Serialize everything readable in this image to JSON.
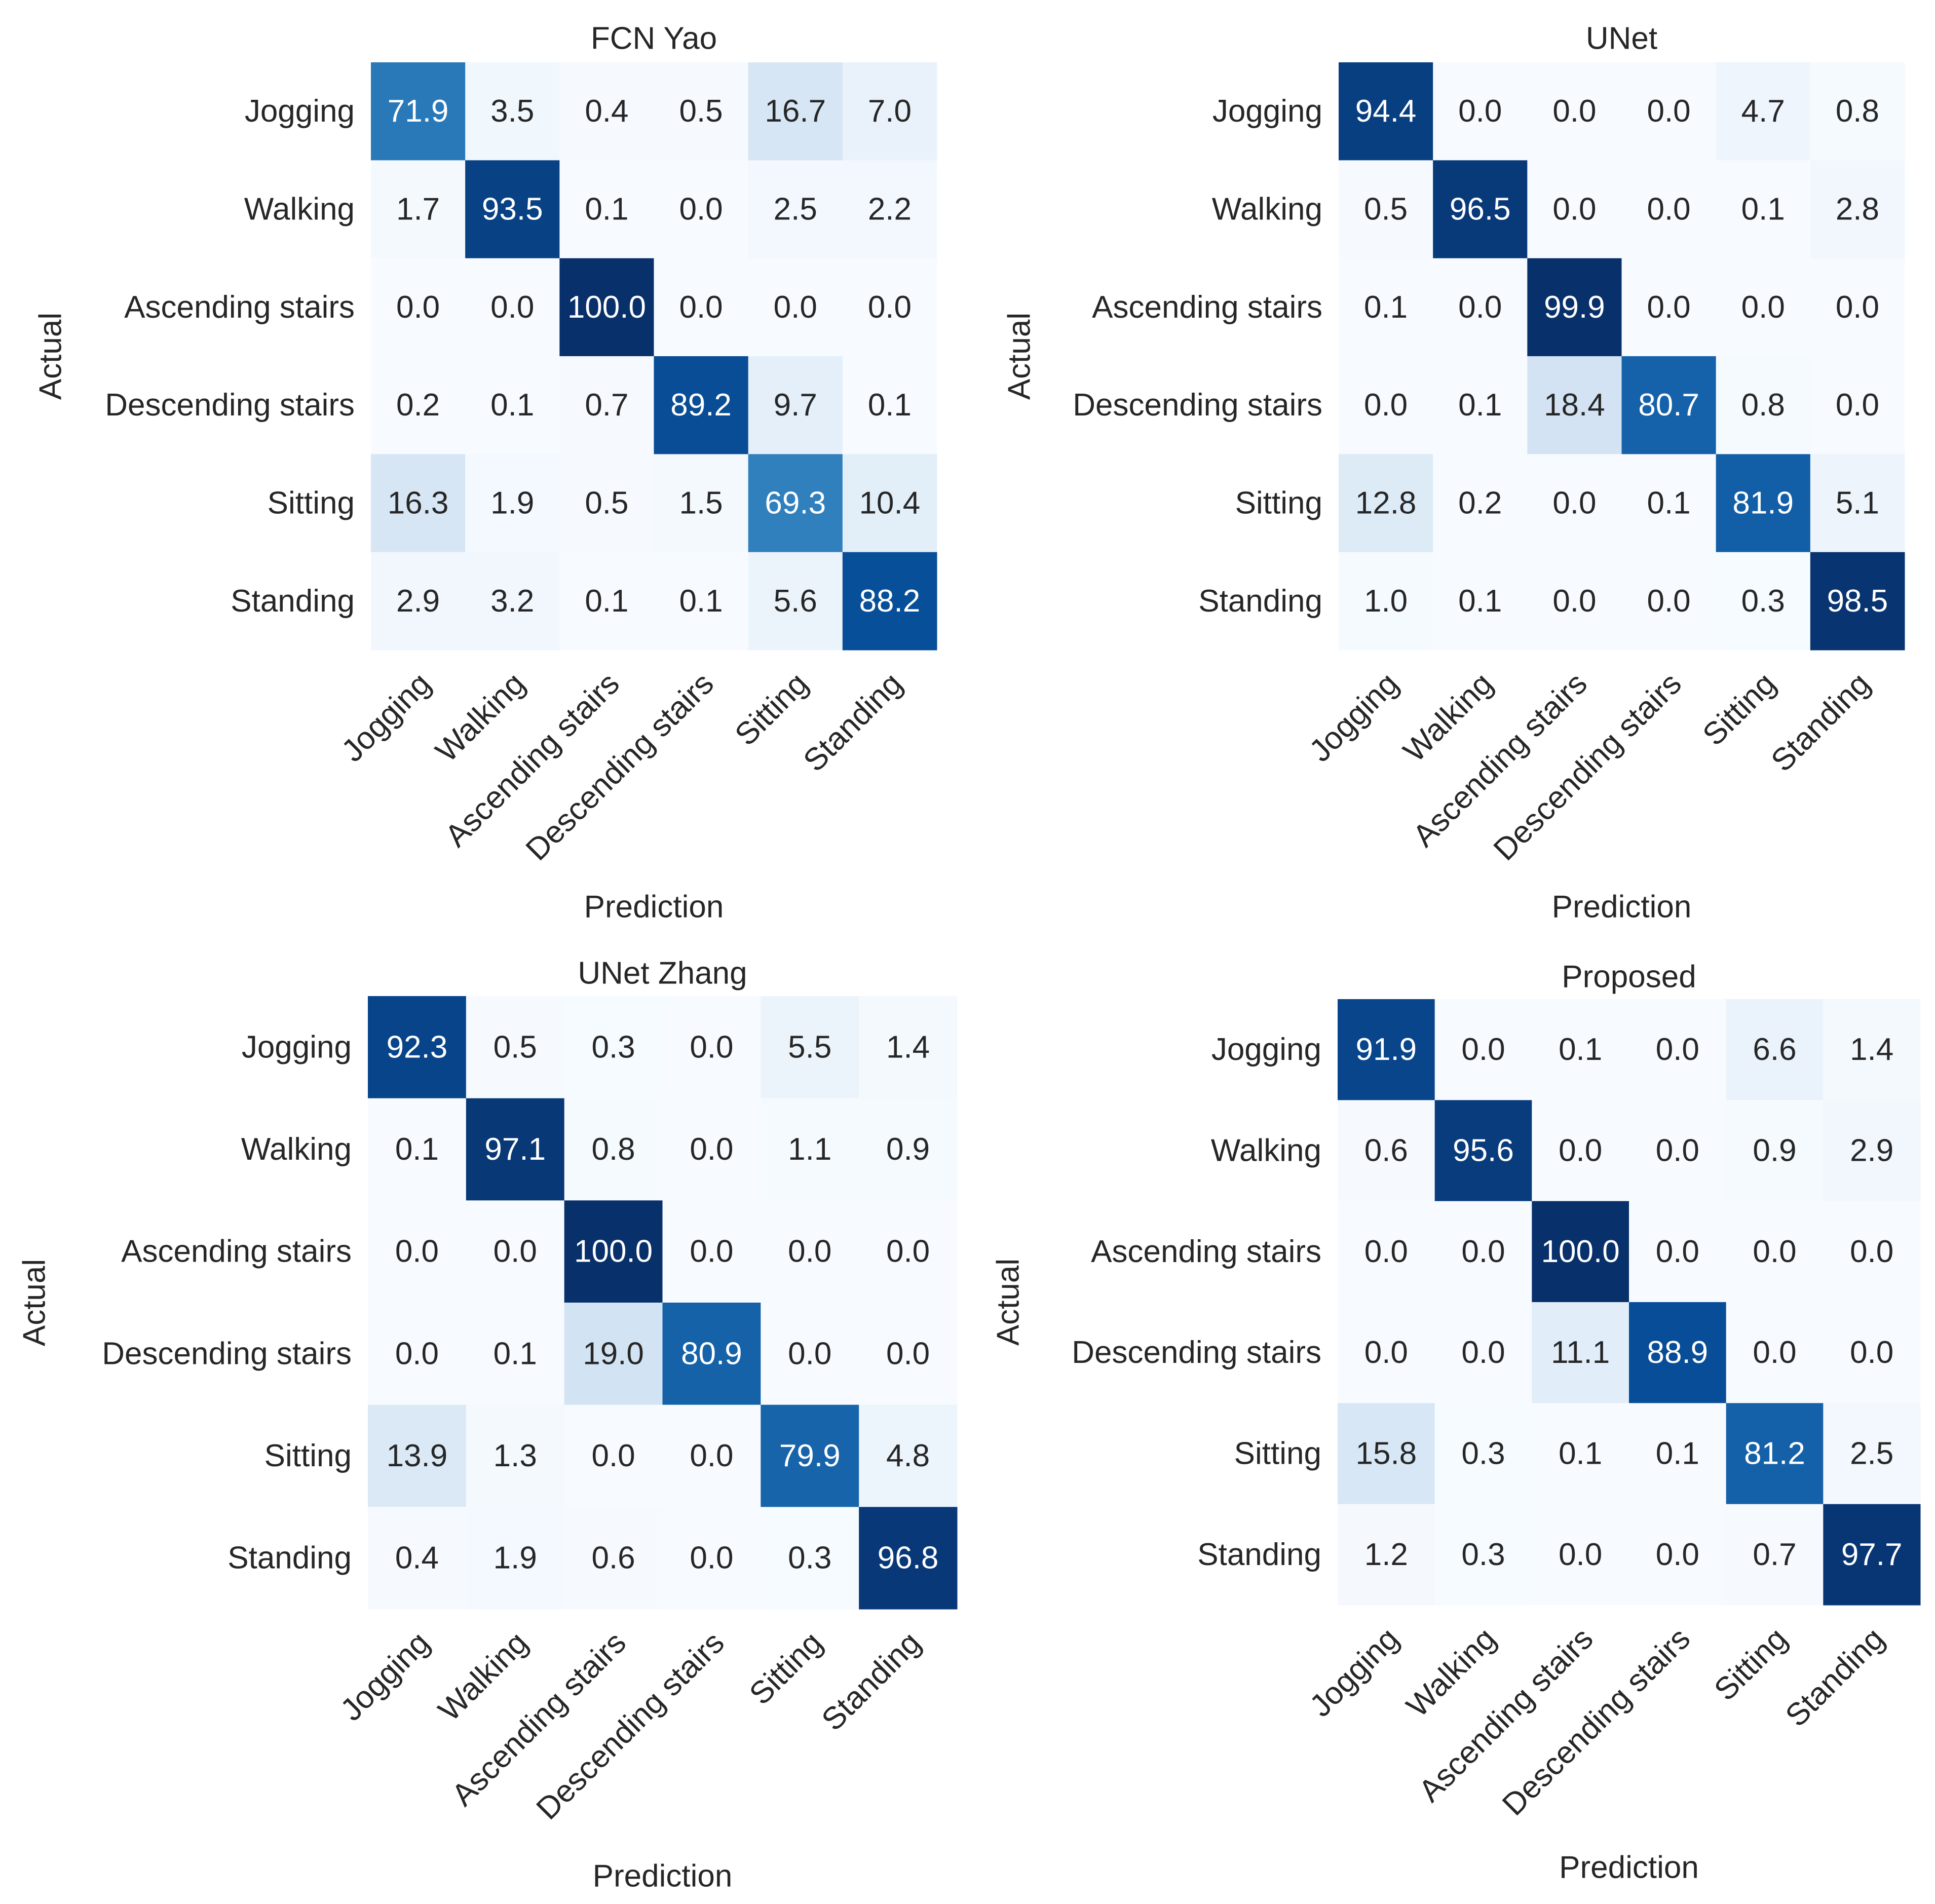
{
  "figure": {
    "panel_count": 4,
    "colormap": "Blues",
    "color_low": "#f7fbff",
    "color_high": "#08306b",
    "text_dark": "#262626",
    "text_light": "#ffffff"
  },
  "chart_data": [
    {
      "type": "heatmap",
      "title": "FCN Yao",
      "xlabel": "Prediction",
      "ylabel": "Actual",
      "x_categories": [
        "Jogging",
        "Walking",
        "Ascending stairs",
        "Descending stairs",
        "Sitting",
        "Standing"
      ],
      "y_categories": [
        "Jogging",
        "Walking",
        "Ascending stairs",
        "Descending stairs",
        "Sitting",
        "Standing"
      ],
      "value_range": [
        0,
        100
      ],
      "values": [
        [
          71.9,
          3.5,
          0.4,
          0.5,
          16.7,
          7.0
        ],
        [
          1.7,
          93.5,
          0.1,
          0.0,
          2.5,
          2.2
        ],
        [
          0.0,
          0.0,
          100.0,
          0.0,
          0.0,
          0.0
        ],
        [
          0.2,
          0.1,
          0.7,
          89.2,
          9.7,
          0.1
        ],
        [
          16.3,
          1.9,
          0.5,
          1.5,
          69.3,
          10.4
        ],
        [
          2.9,
          3.2,
          0.1,
          0.1,
          5.6,
          88.2
        ]
      ]
    },
    {
      "type": "heatmap",
      "title": "UNet",
      "xlabel": "Prediction",
      "ylabel": "Actual",
      "x_categories": [
        "Jogging",
        "Walking",
        "Ascending stairs",
        "Descending stairs",
        "Sitting",
        "Standing"
      ],
      "y_categories": [
        "Jogging",
        "Walking",
        "Ascending stairs",
        "Descending stairs",
        "Sitting",
        "Standing"
      ],
      "value_range": [
        0,
        100
      ],
      "values": [
        [
          94.4,
          0.0,
          0.0,
          0.0,
          4.7,
          0.8
        ],
        [
          0.5,
          96.5,
          0.0,
          0.0,
          0.1,
          2.8
        ],
        [
          0.1,
          0.0,
          99.9,
          0.0,
          0.0,
          0.0
        ],
        [
          0.0,
          0.1,
          18.4,
          80.7,
          0.8,
          0.0
        ],
        [
          12.8,
          0.2,
          0.0,
          0.1,
          81.9,
          5.1
        ],
        [
          1.0,
          0.1,
          0.0,
          0.0,
          0.3,
          98.5
        ]
      ]
    },
    {
      "type": "heatmap",
      "title": "UNet Zhang",
      "xlabel": "Prediction",
      "ylabel": "Actual",
      "x_categories": [
        "Jogging",
        "Walking",
        "Ascending stairs",
        "Descending stairs",
        "Sitting",
        "Standing"
      ],
      "y_categories": [
        "Jogging",
        "Walking",
        "Ascending stairs",
        "Descending stairs",
        "Sitting",
        "Standing"
      ],
      "value_range": [
        0,
        100
      ],
      "values": [
        [
          92.3,
          0.5,
          0.3,
          0.0,
          5.5,
          1.4
        ],
        [
          0.1,
          97.1,
          0.8,
          0.0,
          1.1,
          0.9
        ],
        [
          0.0,
          0.0,
          100.0,
          0.0,
          0.0,
          0.0
        ],
        [
          0.0,
          0.1,
          19.0,
          80.9,
          0.0,
          0.0
        ],
        [
          13.9,
          1.3,
          0.0,
          0.0,
          79.9,
          4.8
        ],
        [
          0.4,
          1.9,
          0.6,
          0.0,
          0.3,
          96.8
        ]
      ]
    },
    {
      "type": "heatmap",
      "title": "Proposed",
      "xlabel": "Prediction",
      "ylabel": "Actual",
      "x_categories": [
        "Jogging",
        "Walking",
        "Ascending stairs",
        "Descending stairs",
        "Sitting",
        "Standing"
      ],
      "y_categories": [
        "Jogging",
        "Walking",
        "Ascending stairs",
        "Descending stairs",
        "Sitting",
        "Standing"
      ],
      "value_range": [
        0,
        100
      ],
      "values": [
        [
          91.9,
          0.0,
          0.1,
          0.0,
          6.6,
          1.4
        ],
        [
          0.6,
          95.6,
          0.0,
          0.0,
          0.9,
          2.9
        ],
        [
          0.0,
          0.0,
          100.0,
          0.0,
          0.0,
          0.0
        ],
        [
          0.0,
          0.0,
          11.1,
          88.9,
          0.0,
          0.0
        ],
        [
          15.8,
          0.3,
          0.1,
          0.1,
          81.2,
          2.5
        ],
        [
          1.2,
          0.3,
          0.0,
          0.0,
          0.7,
          97.7
        ]
      ]
    }
  ]
}
